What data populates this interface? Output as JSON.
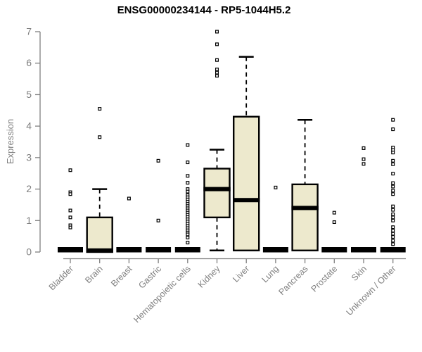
{
  "chart_data": {
    "type": "boxplot",
    "title": "ENSG00000234144 - RP5-1044H5.2",
    "ylabel": "Expression",
    "xlabel": "",
    "ylim": [
      0,
      7
    ],
    "yticks": [
      0,
      1,
      2,
      3,
      4,
      5,
      6,
      7
    ],
    "grid": false,
    "legend": "none",
    "colors": {
      "box_fill": "#ede9cd",
      "box_stroke": "#000000",
      "axis": "#7f7f7f",
      "title": "#000000",
      "background": "#ffffff"
    },
    "categories": [
      {
        "label": "Bladder",
        "collapsed": true,
        "outliers": [
          2.6,
          1.9,
          1.84,
          1.32,
          1.1,
          0.85,
          0.78
        ]
      },
      {
        "label": "Brain",
        "collapsed": false,
        "q1": 0,
        "median": 0.05,
        "q3": 1.1,
        "whisker_low": 0,
        "whisker_high": 2.0,
        "outliers": [
          4.55,
          3.65
        ]
      },
      {
        "label": "Breast",
        "collapsed": true,
        "outliers": [
          1.7
        ]
      },
      {
        "label": "Gastric",
        "collapsed": true,
        "outliers": [
          2.9,
          1.0
        ]
      },
      {
        "label": "Hematopoietic cells",
        "collapsed": true,
        "outliers": [
          3.4,
          2.85,
          2.42,
          2.2,
          2.0,
          1.92,
          1.81,
          1.74,
          1.67,
          1.6,
          1.53,
          1.46,
          1.39,
          1.32,
          1.25,
          1.18,
          1.11,
          1.04,
          0.97,
          0.9,
          0.83,
          0.76,
          0.69,
          0.62,
          0.56,
          0.46,
          0.3
        ]
      },
      {
        "label": "Kidney",
        "collapsed": false,
        "q1": 1.1,
        "median": 2.0,
        "q3": 2.65,
        "whisker_low": 0.05,
        "whisker_high": 3.25,
        "outliers": [
          7.0,
          6.6,
          6.1,
          5.8,
          5.7,
          5.6
        ]
      },
      {
        "label": "Liver",
        "collapsed": false,
        "q1": 0.05,
        "median": 1.65,
        "q3": 4.3,
        "whisker_low": null,
        "whisker_high": 6.2,
        "outliers": []
      },
      {
        "label": "Lung",
        "collapsed": true,
        "outliers": [
          2.05
        ]
      },
      {
        "label": "Pancreas",
        "collapsed": false,
        "q1": 0.05,
        "median": 1.4,
        "q3": 2.15,
        "whisker_low": null,
        "whisker_high": 4.2,
        "outliers": []
      },
      {
        "label": "Prostate",
        "collapsed": true,
        "outliers": [
          1.25,
          0.95
        ]
      },
      {
        "label": "Skin",
        "collapsed": true,
        "outliers": [
          3.3,
          2.95,
          2.8
        ]
      },
      {
        "label": "Unknown / Other",
        "collapsed": true,
        "outliers": [
          4.2,
          3.9,
          3.32,
          3.24,
          3.16,
          2.9,
          2.79,
          2.49,
          2.19,
          2.08,
          1.95,
          1.84,
          1.45,
          1.34,
          1.2,
          1.1,
          1.0,
          0.79,
          0.68,
          0.58,
          0.48,
          0.36,
          0.25
        ]
      }
    ]
  }
}
